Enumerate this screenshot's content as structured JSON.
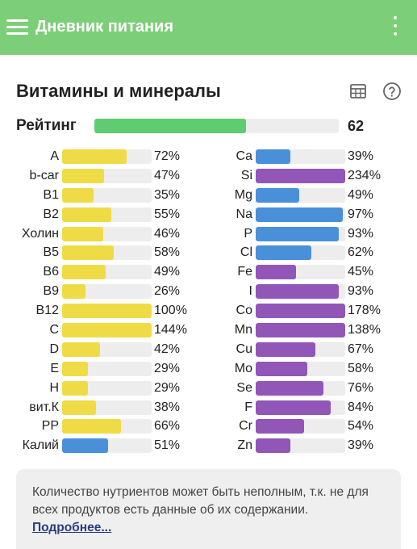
{
  "app": {
    "title": "Дневник питания"
  },
  "section": {
    "title": "Витамины и минералы"
  },
  "colors": {
    "header": "#7dce78",
    "rating": "#5fcc70",
    "yellow": "#efdb45",
    "blue": "#4a90d9",
    "purple": "#9156b8",
    "track": "#ededed"
  },
  "icons": {
    "menu": "hamburger-icon",
    "more": "more-vert-icon",
    "table": "table-icon",
    "help": "help-circle-icon"
  },
  "rating": {
    "label": "Рейтинг",
    "value": "62",
    "fraction": 0.62
  },
  "left_column": [
    {
      "label": "A",
      "value": "72%",
      "percent": 72,
      "color": "yellow"
    },
    {
      "label": "b-car",
      "value": "47%",
      "percent": 47,
      "color": "yellow"
    },
    {
      "label": "B1",
      "value": "35%",
      "percent": 35,
      "color": "yellow"
    },
    {
      "label": "B2",
      "value": "55%",
      "percent": 55,
      "color": "yellow"
    },
    {
      "label": "Холин",
      "value": "46%",
      "percent": 46,
      "color": "yellow"
    },
    {
      "label": "B5",
      "value": "58%",
      "percent": 58,
      "color": "yellow"
    },
    {
      "label": "B6",
      "value": "49%",
      "percent": 49,
      "color": "yellow"
    },
    {
      "label": "B9",
      "value": "26%",
      "percent": 26,
      "color": "yellow"
    },
    {
      "label": "B12",
      "value": "100%",
      "percent": 100,
      "color": "yellow"
    },
    {
      "label": "C",
      "value": "144%",
      "percent": 144,
      "color": "yellow"
    },
    {
      "label": "D",
      "value": "42%",
      "percent": 42,
      "color": "yellow"
    },
    {
      "label": "E",
      "value": "29%",
      "percent": 29,
      "color": "yellow"
    },
    {
      "label": "H",
      "value": "29%",
      "percent": 29,
      "color": "yellow"
    },
    {
      "label": "вит.К",
      "value": "38%",
      "percent": 38,
      "color": "yellow"
    },
    {
      "label": "PP",
      "value": "66%",
      "percent": 66,
      "color": "yellow"
    },
    {
      "label": "Калий",
      "value": "51%",
      "percent": 51,
      "color": "blue"
    }
  ],
  "right_column": [
    {
      "label": "Ca",
      "value": "39%",
      "percent": 39,
      "color": "blue"
    },
    {
      "label": "Si",
      "value": "234%",
      "percent": 234,
      "color": "purple"
    },
    {
      "label": "Mg",
      "value": "49%",
      "percent": 49,
      "color": "blue"
    },
    {
      "label": "Na",
      "value": "97%",
      "percent": 97,
      "color": "blue"
    },
    {
      "label": "P",
      "value": "93%",
      "percent": 93,
      "color": "blue"
    },
    {
      "label": "Cl",
      "value": "62%",
      "percent": 62,
      "color": "blue"
    },
    {
      "label": "Fe",
      "value": "45%",
      "percent": 45,
      "color": "purple"
    },
    {
      "label": "I",
      "value": "93%",
      "percent": 93,
      "color": "purple"
    },
    {
      "label": "Co",
      "value": "178%",
      "percent": 178,
      "color": "purple"
    },
    {
      "label": "Mn",
      "value": "138%",
      "percent": 138,
      "color": "purple"
    },
    {
      "label": "Cu",
      "value": "67%",
      "percent": 67,
      "color": "purple"
    },
    {
      "label": "Mo",
      "value": "58%",
      "percent": 58,
      "color": "purple"
    },
    {
      "label": "Se",
      "value": "76%",
      "percent": 76,
      "color": "purple"
    },
    {
      "label": "F",
      "value": "84%",
      "percent": 84,
      "color": "purple"
    },
    {
      "label": "Cr",
      "value": "54%",
      "percent": 54,
      "color": "purple"
    },
    {
      "label": "Zn",
      "value": "39%",
      "percent": 39,
      "color": "purple"
    }
  ],
  "note": {
    "text": "Количество нутриентов может быть неполным, т.к. не для всех продуктов есть данные об их содержании. ",
    "link": "Подробнее..."
  }
}
